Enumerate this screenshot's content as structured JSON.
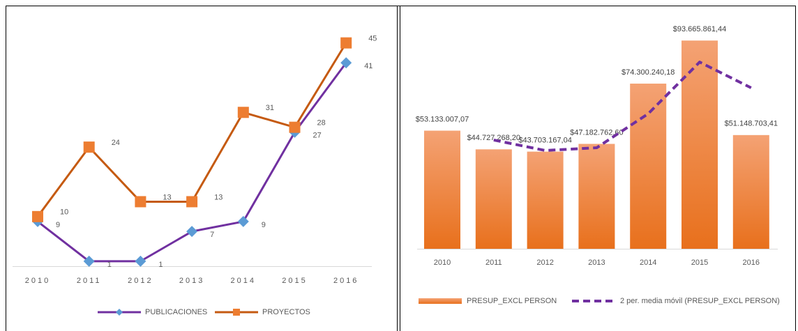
{
  "chart_data": [
    {
      "type": "line",
      "categories": [
        "2010",
        "2011",
        "2012",
        "2013",
        "2014",
        "2015",
        "2016"
      ],
      "series": [
        {
          "name": "PUBLICACIONES",
          "color": "#7030a0",
          "marker_color": "#5b9bd5",
          "marker": "diamond",
          "values": [
            9,
            1,
            1,
            7,
            9,
            27,
            41
          ]
        },
        {
          "name": "PROYECTOS",
          "color": "#c55a11",
          "marker_color": "#ed7d31",
          "marker": "square",
          "values": [
            10,
            24,
            13,
            13,
            31,
            28,
            45
          ]
        }
      ],
      "ylim": [
        0,
        50
      ]
    },
    {
      "type": "bar",
      "categories": [
        "2010",
        "2011",
        "2012",
        "2013",
        "2014",
        "2015",
        "2016"
      ],
      "series": [
        {
          "name": "PRESUP_EXCL PERSON",
          "color": "#ed7d31",
          "values": [
            53133007.07,
            44727268.2,
            43703167.04,
            47182762.6,
            74300240.18,
            93665861.44,
            51148703.41
          ],
          "value_labels": [
            "$53.133.007,07",
            "$44.727.268,20",
            "$43.703.167,04",
            "$47.182.762,60",
            "$74.300.240,18",
            "$93.665.861,44",
            "$51.148.703,41"
          ]
        },
        {
          "name": "2 per. media móvil (PRESUP_EXCL PERSON)",
          "color": "#7030a0",
          "type": "line",
          "dashed": true,
          "values": [
            null,
            48930137.64,
            44215217.62,
            45442964.82,
            60741501.39,
            83983050.81,
            72407282.43
          ]
        }
      ],
      "ylim": [
        0,
        100000000
      ]
    }
  ]
}
